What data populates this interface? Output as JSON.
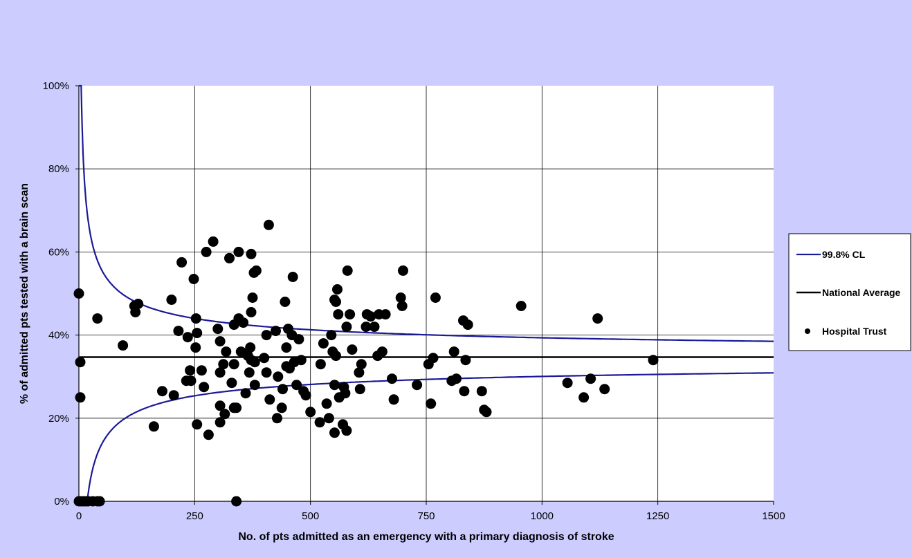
{
  "chart_data": {
    "type": "scatter",
    "title": "",
    "xlabel": "No. of pts admitted as an emergency with a primary diagnosis of stroke",
    "ylabel": "% of admitted pts tested with a brain scan",
    "xlim": [
      0,
      1500
    ],
    "ylim": [
      0,
      100
    ],
    "x_ticks": [
      0,
      250,
      500,
      750,
      1000,
      1250,
      1500
    ],
    "y_ticks": [
      0,
      20,
      40,
      60,
      80,
      100
    ],
    "x_tick_labels": [
      "0",
      "250",
      "500",
      "750",
      "1000",
      "1250",
      "1500"
    ],
    "y_tick_labels": [
      "0%",
      "20%",
      "40%",
      "60%",
      "80%",
      "100%"
    ],
    "grid": true,
    "legend_position": "right",
    "colors": {
      "cl": "#1a1a99",
      "average": "#000000",
      "points": "#000000",
      "plot_bg": "#ffffff",
      "page_bg": "#ccccff"
    },
    "national_average": 34.7,
    "confidence_limit_pct": 99.8,
    "legend": [
      {
        "key": "cl",
        "label": "99.8% CL",
        "style": "line",
        "color": "#1a1a99"
      },
      {
        "key": "avg",
        "label": "National Average",
        "style": "line",
        "color": "#000000"
      },
      {
        "key": "trust",
        "label": "Hospital Trust",
        "style": "marker",
        "color": "#000000"
      }
    ],
    "series": [
      {
        "name": "Hospital Trust",
        "points": [
          [
            0,
            50
          ],
          [
            3,
            33.5
          ],
          [
            3,
            25
          ],
          [
            0,
            0
          ],
          [
            5,
            0
          ],
          [
            10,
            0
          ],
          [
            15,
            0
          ],
          [
            20,
            0
          ],
          [
            30,
            0
          ],
          [
            40,
            0
          ],
          [
            45,
            0
          ],
          [
            40,
            44
          ],
          [
            95,
            37.5
          ],
          [
            120,
            47
          ],
          [
            122,
            45.5
          ],
          [
            128,
            47.5
          ],
          [
            162,
            18
          ],
          [
            180,
            26.5
          ],
          [
            200,
            48.5
          ],
          [
            205,
            25.5
          ],
          [
            215,
            41
          ],
          [
            222,
            57.5
          ],
          [
            232,
            29
          ],
          [
            235,
            39.5
          ],
          [
            240,
            31.5
          ],
          [
            242,
            29
          ],
          [
            248,
            53.5
          ],
          [
            253,
            44
          ],
          [
            252,
            37
          ],
          [
            255,
            40.5
          ],
          [
            255,
            18.5
          ],
          [
            265,
            31.5
          ],
          [
            270,
            27.5
          ],
          [
            275,
            60
          ],
          [
            280,
            16
          ],
          [
            290,
            62.5
          ],
          [
            300,
            41.5
          ],
          [
            305,
            38.5
          ],
          [
            305,
            31
          ],
          [
            305,
            23
          ],
          [
            305,
            19
          ],
          [
            312,
            33
          ],
          [
            315,
            21
          ],
          [
            318,
            36
          ],
          [
            325,
            58.5
          ],
          [
            330,
            28.5
          ],
          [
            335,
            42.5
          ],
          [
            335,
            33
          ],
          [
            335,
            22.5
          ],
          [
            340,
            22.5
          ],
          [
            345,
            60
          ],
          [
            345,
            44
          ],
          [
            350,
            36
          ],
          [
            355,
            43
          ],
          [
            360,
            26
          ],
          [
            365,
            35
          ],
          [
            368,
            31
          ],
          [
            370,
            37
          ],
          [
            372,
            34
          ],
          [
            372,
            45.5
          ],
          [
            372,
            59.5
          ],
          [
            375,
            49
          ],
          [
            378,
            55
          ],
          [
            380,
            33.5
          ],
          [
            383,
            55.5
          ],
          [
            380,
            28
          ],
          [
            340,
            0
          ],
          [
            400,
            34.5
          ],
          [
            405,
            40
          ],
          [
            405,
            31
          ],
          [
            410,
            66.5
          ],
          [
            412,
            24.5
          ],
          [
            425,
            41
          ],
          [
            428,
            20
          ],
          [
            430,
            30
          ],
          [
            438,
            22.5
          ],
          [
            440,
            27
          ],
          [
            445,
            48
          ],
          [
            448,
            37
          ],
          [
            448,
            32.5
          ],
          [
            452,
            41.5
          ],
          [
            455,
            32
          ],
          [
            460,
            40
          ],
          [
            462,
            54
          ],
          [
            465,
            33.5
          ],
          [
            470,
            28
          ],
          [
            475,
            39
          ],
          [
            480,
            34
          ],
          [
            485,
            26.5
          ],
          [
            490,
            25.5
          ],
          [
            500,
            21.5
          ],
          [
            520,
            19
          ],
          [
            522,
            33
          ],
          [
            528,
            38
          ],
          [
            535,
            23.5
          ],
          [
            540,
            20
          ],
          [
            545,
            40
          ],
          [
            548,
            36
          ],
          [
            552,
            28
          ],
          [
            552,
            48.5
          ],
          [
            552,
            16.5
          ],
          [
            555,
            48
          ],
          [
            555,
            35
          ],
          [
            558,
            51
          ],
          [
            560,
            45
          ],
          [
            562,
            25
          ],
          [
            570,
            18.5
          ],
          [
            572,
            27.5
          ],
          [
            575,
            26
          ],
          [
            578,
            17
          ],
          [
            578,
            42
          ],
          [
            580,
            55.5
          ],
          [
            585,
            45
          ],
          [
            590,
            36.5
          ],
          [
            605,
            31
          ],
          [
            607,
            27
          ],
          [
            610,
            33
          ],
          [
            620,
            42
          ],
          [
            622,
            45
          ],
          [
            630,
            44.5
          ],
          [
            638,
            42
          ],
          [
            645,
            35
          ],
          [
            648,
            45
          ],
          [
            655,
            36
          ],
          [
            662,
            45
          ],
          [
            676,
            29.5
          ],
          [
            680,
            24.5
          ],
          [
            695,
            49
          ],
          [
            698,
            47
          ],
          [
            700,
            55.5
          ],
          [
            730,
            28
          ],
          [
            755,
            33
          ],
          [
            760,
            23.5
          ],
          [
            765,
            34.5
          ],
          [
            770,
            49
          ],
          [
            805,
            29
          ],
          [
            810,
            36
          ],
          [
            815,
            29.5
          ],
          [
            830,
            43.5
          ],
          [
            832,
            26.5
          ],
          [
            835,
            34
          ],
          [
            840,
            42.5
          ],
          [
            870,
            26.5
          ],
          [
            875,
            22
          ],
          [
            880,
            21.5
          ],
          [
            955,
            47
          ],
          [
            1055,
            28.5
          ],
          [
            1090,
            25
          ],
          [
            1105,
            29.5
          ],
          [
            1120,
            44
          ],
          [
            1135,
            27
          ],
          [
            1240,
            34
          ]
        ]
      }
    ]
  }
}
